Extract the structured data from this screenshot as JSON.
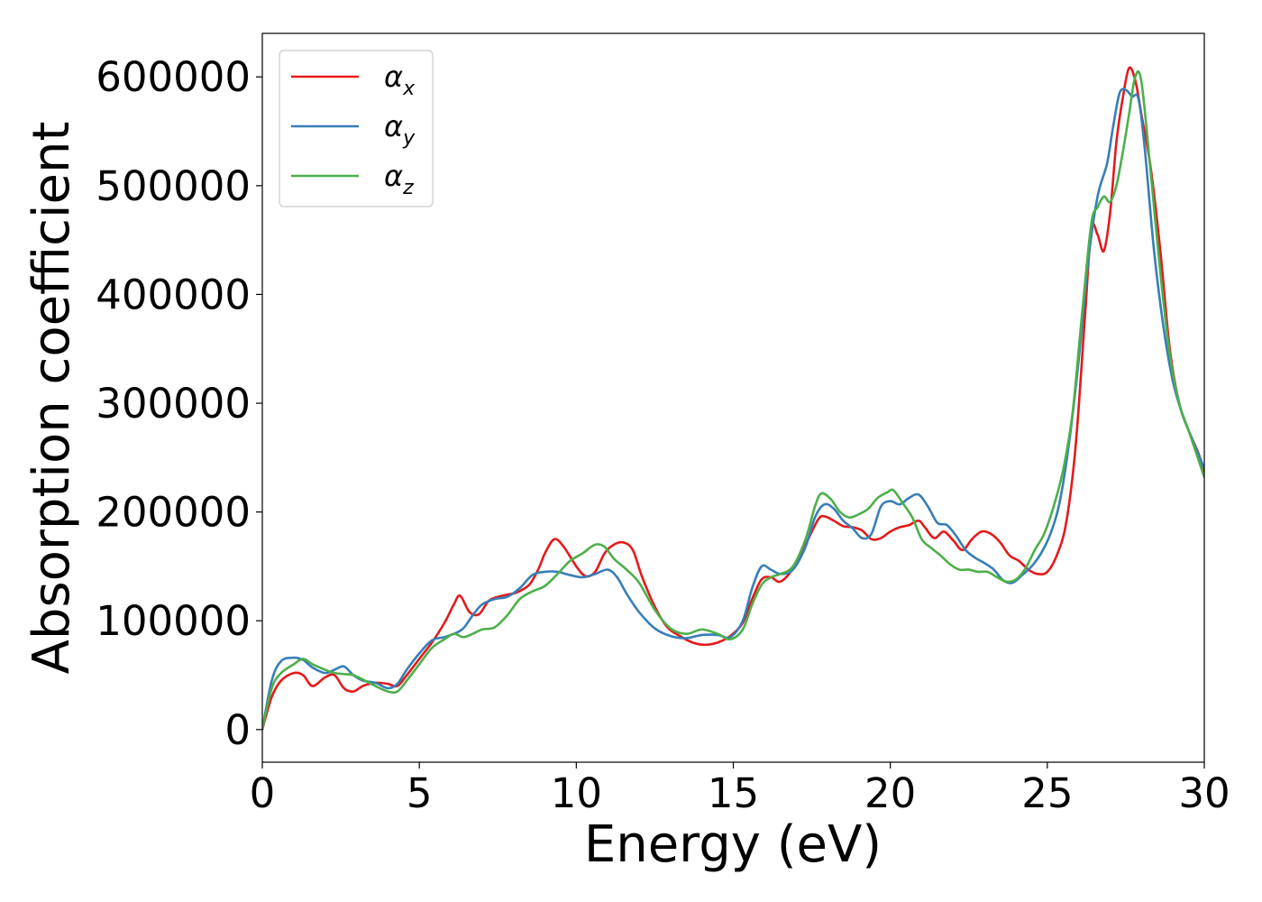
{
  "chart_data": {
    "type": "line",
    "xlabel": "Energy (eV)",
    "ylabel": "Absorption coefficient",
    "xlim": [
      0,
      30
    ],
    "ylim": [
      -30000,
      640000
    ],
    "xticks": [
      0,
      5,
      10,
      15,
      20,
      25,
      30
    ],
    "xtick_labels": [
      "0",
      "5",
      "10",
      "15",
      "20",
      "25",
      "30"
    ],
    "yticks": [
      0,
      100000,
      200000,
      300000,
      400000,
      500000,
      600000
    ],
    "ytick_labels": [
      "0",
      "100000",
      "200000",
      "300000",
      "400000",
      "500000",
      "600000"
    ],
    "grid": false,
    "legend_position": "upper-left",
    "series": [
      {
        "name": "α_x",
        "label_main": "α",
        "label_sub": "x",
        "color": "#e41a1c",
        "x": [
          0,
          0.3,
          0.6,
          1.0,
          1.3,
          1.6,
          2.0,
          2.3,
          2.6,
          2.9,
          3.2,
          3.6,
          4.0,
          4.3,
          4.6,
          5.0,
          5.4,
          5.8,
          6.1,
          6.3,
          6.6,
          6.9,
          7.2,
          7.5,
          7.8,
          8.1,
          8.5,
          8.8,
          9.0,
          9.3,
          9.6,
          10.0,
          10.3,
          10.6,
          10.9,
          11.2,
          11.5,
          11.8,
          12.1,
          12.5,
          12.9,
          13.3,
          13.7,
          14.1,
          14.5,
          14.9,
          15.3,
          15.6,
          15.9,
          16.2,
          16.5,
          16.9,
          17.3,
          17.7,
          17.9,
          18.2,
          18.5,
          18.8,
          19.1,
          19.4,
          19.7,
          20.0,
          20.3,
          20.6,
          20.9,
          21.1,
          21.4,
          21.7,
          22.0,
          22.3,
          22.6,
          22.9,
          23.2,
          23.5,
          23.8,
          24.1,
          24.4,
          24.7,
          25.0,
          25.3,
          25.6,
          25.9,
          26.2,
          26.4,
          26.6,
          26.8,
          27.0,
          27.2,
          27.4,
          27.6,
          27.8,
          28.0,
          28.3,
          28.6,
          28.9,
          29.2,
          29.5,
          29.8,
          30.0
        ],
        "y": [
          0,
          30000,
          45000,
          52000,
          50000,
          40000,
          48000,
          50000,
          38000,
          35000,
          40000,
          43000,
          42000,
          40000,
          50000,
          65000,
          80000,
          98000,
          115000,
          123000,
          108000,
          106000,
          118000,
          122000,
          124000,
          126000,
          133000,
          148000,
          162000,
          175000,
          168000,
          150000,
          141000,
          145000,
          162000,
          170000,
          172000,
          165000,
          140000,
          113000,
          94000,
          86000,
          80000,
          78000,
          80000,
          86000,
          98000,
          120000,
          138000,
          140000,
          136000,
          148000,
          170000,
          193000,
          196000,
          192000,
          187000,
          186000,
          183000,
          175000,
          176000,
          182000,
          186000,
          188000,
          192000,
          186000,
          176000,
          182000,
          174000,
          165000,
          175000,
          182000,
          180000,
          172000,
          160000,
          155000,
          147000,
          143000,
          145000,
          160000,
          190000,
          260000,
          380000,
          460000,
          455000,
          440000,
          475000,
          540000,
          580000,
          608000,
          597000,
          565000,
          515000,
          440000,
          350000,
          300000,
          275000,
          255000,
          238000
        ]
      },
      {
        "name": "α_y",
        "label_main": "α",
        "label_sub": "y",
        "color": "#377eb8",
        "x": [
          0,
          0.3,
          0.6,
          1.0,
          1.3,
          1.6,
          2.0,
          2.3,
          2.6,
          2.9,
          3.2,
          3.6,
          4.0,
          4.3,
          4.6,
          5.0,
          5.4,
          5.8,
          6.1,
          6.4,
          6.7,
          7.0,
          7.4,
          7.8,
          8.2,
          8.6,
          9.0,
          9.4,
          9.8,
          10.2,
          10.6,
          11.0,
          11.3,
          11.6,
          12.0,
          12.5,
          13.0,
          13.5,
          14.0,
          14.5,
          14.9,
          15.3,
          15.6,
          15.9,
          16.2,
          16.5,
          16.9,
          17.3,
          17.6,
          17.9,
          18.2,
          18.5,
          18.8,
          19.1,
          19.4,
          19.7,
          20.0,
          20.3,
          20.6,
          20.9,
          21.2,
          21.5,
          21.8,
          22.1,
          22.4,
          22.7,
          23.0,
          23.3,
          23.6,
          23.9,
          24.2,
          24.5,
          24.8,
          25.1,
          25.4,
          25.7,
          26.0,
          26.3,
          26.6,
          26.9,
          27.1,
          27.3,
          27.5,
          27.7,
          27.9,
          28.1,
          28.4,
          28.7,
          29.0,
          29.3,
          29.6,
          30.0
        ],
        "y": [
          0,
          45000,
          63000,
          66000,
          64000,
          57000,
          52000,
          55000,
          58000,
          50000,
          45000,
          43000,
          38000,
          42000,
          55000,
          70000,
          82000,
          85000,
          88000,
          93000,
          105000,
          115000,
          120000,
          122000,
          130000,
          142000,
          145000,
          145000,
          142000,
          140000,
          143000,
          147000,
          140000,
          125000,
          108000,
          93000,
          86000,
          84000,
          87000,
          87000,
          85000,
          100000,
          130000,
          150000,
          147000,
          143000,
          147000,
          168000,
          195000,
          207000,
          203000,
          192000,
          185000,
          176000,
          180000,
          205000,
          210000,
          207000,
          213000,
          216000,
          205000,
          190000,
          188000,
          178000,
          165000,
          158000,
          153000,
          147000,
          137000,
          135000,
          142000,
          150000,
          162000,
          180000,
          210000,
          265000,
          340000,
          430000,
          490000,
          520000,
          555000,
          585000,
          588000,
          582000,
          580000,
          535000,
          440000,
          370000,
          320000,
          290000,
          268000,
          240000
        ]
      },
      {
        "name": "α_z",
        "label_main": "α",
        "label_sub": "z",
        "color": "#4daf4a",
        "x": [
          0,
          0.3,
          0.6,
          1.0,
          1.3,
          1.6,
          2.0,
          2.3,
          2.6,
          2.9,
          3.2,
          3.6,
          4.0,
          4.3,
          4.6,
          5.0,
          5.4,
          5.8,
          6.1,
          6.4,
          6.7,
          7.0,
          7.4,
          7.8,
          8.2,
          8.6,
          9.0,
          9.4,
          9.8,
          10.2,
          10.6,
          10.9,
          11.2,
          11.6,
          12.0,
          12.5,
          13.0,
          13.5,
          14.0,
          14.5,
          14.9,
          15.3,
          15.6,
          15.9,
          16.2,
          16.5,
          16.9,
          17.3,
          17.6,
          17.8,
          18.1,
          18.4,
          18.7,
          19.0,
          19.3,
          19.6,
          19.9,
          20.1,
          20.4,
          20.7,
          21.0,
          21.3,
          21.6,
          21.9,
          22.2,
          22.5,
          22.8,
          23.1,
          23.4,
          23.7,
          24.0,
          24.3,
          24.6,
          24.9,
          25.2,
          25.5,
          25.8,
          26.1,
          26.4,
          26.6,
          26.8,
          27.0,
          27.2,
          27.4,
          27.6,
          27.8,
          28.0,
          28.3,
          28.6,
          28.9,
          29.2,
          29.5,
          30.0
        ],
        "y": [
          0,
          38000,
          52000,
          60000,
          65000,
          60000,
          55000,
          52000,
          51000,
          50000,
          46000,
          40000,
          35000,
          35000,
          45000,
          60000,
          75000,
          83000,
          88000,
          85000,
          88000,
          92000,
          94000,
          105000,
          120000,
          127000,
          132000,
          143000,
          155000,
          162000,
          170000,
          168000,
          157000,
          147000,
          135000,
          110000,
          93000,
          88000,
          92000,
          88000,
          83000,
          92000,
          115000,
          133000,
          140000,
          143000,
          150000,
          175000,
          205000,
          217000,
          212000,
          200000,
          195000,
          198000,
          203000,
          213000,
          218000,
          220000,
          208000,
          195000,
          175000,
          167000,
          160000,
          152000,
          147000,
          147000,
          145000,
          145000,
          140000,
          136000,
          138000,
          148000,
          165000,
          180000,
          205000,
          238000,
          290000,
          380000,
          465000,
          480000,
          490000,
          485000,
          500000,
          530000,
          565000,
          600000,
          595000,
          510000,
          420000,
          345000,
          300000,
          275000,
          232000
        ]
      }
    ]
  }
}
